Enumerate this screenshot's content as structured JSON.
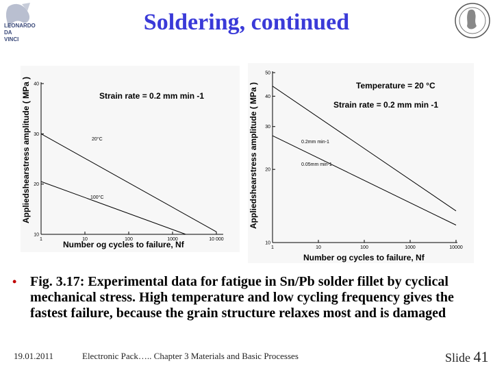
{
  "title": "Soldering, continued",
  "logo_left": {
    "icon": "leonardo-da-vinci-logo",
    "lines": [
      "LEONARDO",
      "DA",
      "VINCI"
    ]
  },
  "logo_right": {
    "icon": "university-seal"
  },
  "chart_data": [
    {
      "type": "line",
      "title": "Strain rate = 0.2 mm min -1",
      "xlabel": "Number og cycles to failure, Nf",
      "ylabel": "Appliedshearstress amplitude ( MPa )",
      "xscale": "log",
      "xlim": [
        1,
        10000
      ],
      "ylim": [
        10,
        40
      ],
      "x_ticks": [
        "1",
        "10",
        "100",
        "1000",
        "10 000"
      ],
      "y_ticks": [
        "10",
        "20",
        "30",
        "40"
      ],
      "series": [
        {
          "name": "20°C",
          "x": [
            1,
            10000
          ],
          "y": [
            30,
            10.5
          ]
        },
        {
          "name": "100°C",
          "x": [
            1,
            2000
          ],
          "y": [
            20.5,
            10
          ]
        }
      ]
    },
    {
      "type": "line",
      "title": "Temperature = 20 °C",
      "subtitle": "Strain rate = 0.2 mm min -1",
      "xlabel": "Number og cycles to failure, Nf",
      "ylabel": "Appliedshearstress amplitude ( MPa )",
      "xscale": "log",
      "yscale": "log",
      "xlim": [
        1,
        10000
      ],
      "ylim": [
        10,
        50
      ],
      "x_ticks": [
        "1",
        "10",
        "100",
        "1000",
        "10000"
      ],
      "y_ticks": [
        "10",
        "20",
        "30",
        "40",
        "50"
      ],
      "series": [
        {
          "name": "0.2mm min-1",
          "x": [
            1,
            10000
          ],
          "y": [
            44,
            13.5
          ]
        },
        {
          "name": "0.05mm min-1",
          "x": [
            1,
            10000
          ],
          "y": [
            27.5,
            11.8
          ]
        }
      ]
    }
  ],
  "bullet_text": "Fig. 3.17: Experimental data for fatigue in Sn/Pb solder fillet by cyclical mechanical stress. High temperature and low cycling frequency gives the fastest failure, because the grain structure relaxes most and is damaged",
  "footer": {
    "date": "19.01.2011",
    "course": "Electronic Pack….. Chapter 3 Materials and Basic Processes",
    "slide_label": "Slide",
    "slide_number": "41"
  }
}
